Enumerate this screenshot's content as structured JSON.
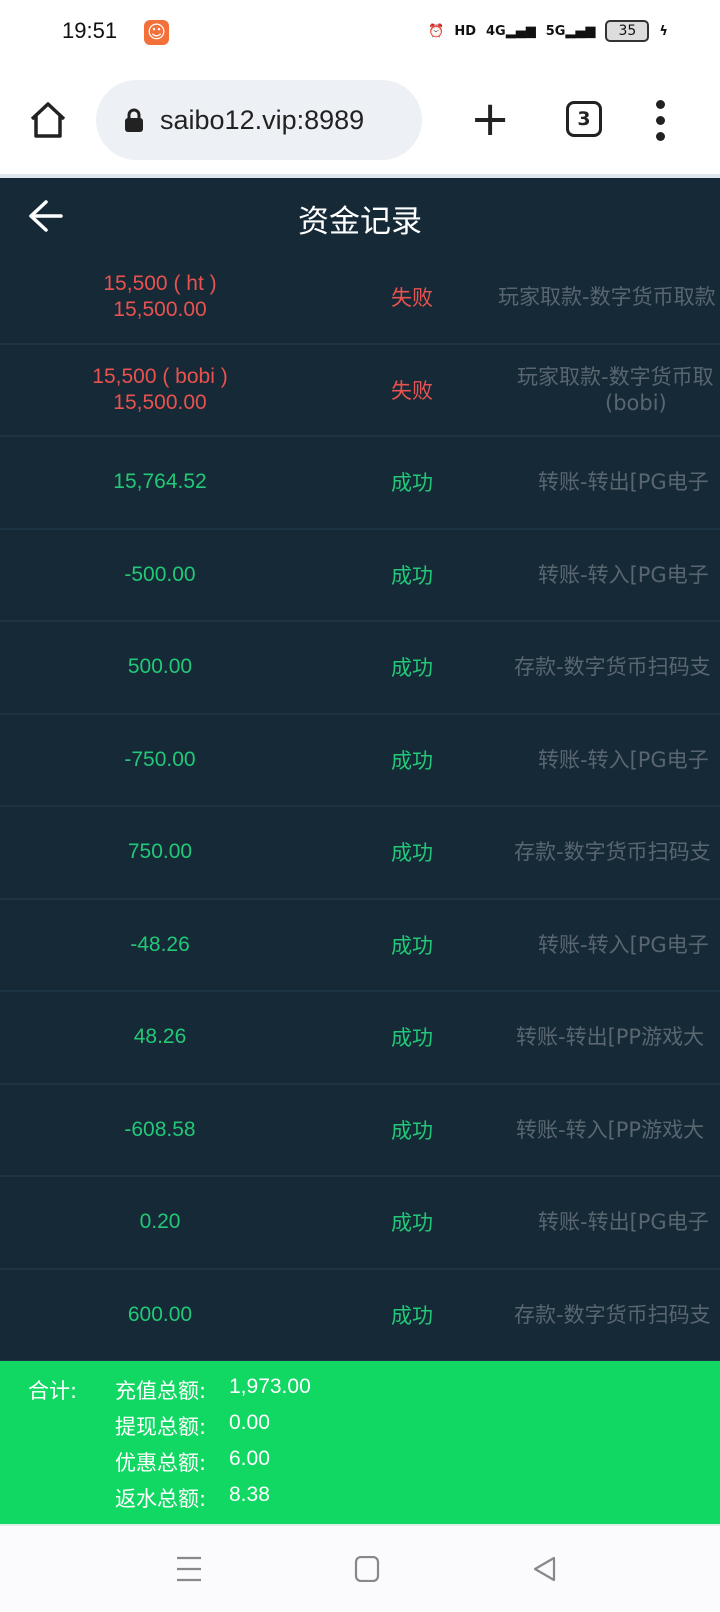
{
  "status_bar": {
    "time": "19:51",
    "battery": "35",
    "network": [
      "HD",
      "4G",
      "5G"
    ]
  },
  "browser": {
    "url": "saibo12.vip:8989",
    "tab_count": "3"
  },
  "page": {
    "title": "资金记录"
  },
  "records": [
    {
      "amount": "15,500 ( ht )",
      "amount2": "15,500.00",
      "status": "失败",
      "status_type": "fail",
      "desc": "玩家取款-数字货币取款",
      "desc2": ""
    },
    {
      "amount": "15,500 ( bobi )",
      "amount2": "15,500.00",
      "status": "失败",
      "status_type": "fail",
      "desc": "玩家取款-数字货币取",
      "desc2": "(bobi)"
    },
    {
      "amount": "15,764.52",
      "amount2": "",
      "status": "成功",
      "status_type": "success",
      "desc": "转账-转出[PG电子",
      "desc2": ""
    },
    {
      "amount": "-500.00",
      "amount2": "",
      "status": "成功",
      "status_type": "success",
      "desc": "转账-转入[PG电子",
      "desc2": ""
    },
    {
      "amount": "500.00",
      "amount2": "",
      "status": "成功",
      "status_type": "success",
      "desc": "存款-数字货币扫码支",
      "desc2": ""
    },
    {
      "amount": "-750.00",
      "amount2": "",
      "status": "成功",
      "status_type": "success",
      "desc": "转账-转入[PG电子",
      "desc2": ""
    },
    {
      "amount": "750.00",
      "amount2": "",
      "status": "成功",
      "status_type": "success",
      "desc": "存款-数字货币扫码支",
      "desc2": ""
    },
    {
      "amount": "-48.26",
      "amount2": "",
      "status": "成功",
      "status_type": "success",
      "desc": "转账-转入[PG电子",
      "desc2": ""
    },
    {
      "amount": "48.26",
      "amount2": "",
      "status": "成功",
      "status_type": "success",
      "desc": "转账-转出[PP游戏大",
      "desc2": ""
    },
    {
      "amount": "-608.58",
      "amount2": "",
      "status": "成功",
      "status_type": "success",
      "desc": "转账-转入[PP游戏大",
      "desc2": ""
    },
    {
      "amount": "0.20",
      "amount2": "",
      "status": "成功",
      "status_type": "success",
      "desc": "转账-转出[PG电子",
      "desc2": ""
    },
    {
      "amount": "600.00",
      "amount2": "",
      "status": "成功",
      "status_type": "success",
      "desc": "存款-数字货币扫码支",
      "desc2": ""
    }
  ],
  "summary": {
    "label": "合计:",
    "lines": [
      {
        "label": "充值总额:",
        "value": "1,973.00"
      },
      {
        "label": "提现总额:",
        "value": "0.00"
      },
      {
        "label": "优惠总额:",
        "value": "6.00"
      },
      {
        "label": "返水总额:",
        "value": "8.38"
      }
    ]
  },
  "colors": {
    "background": "#152937",
    "fail": "#e8524f",
    "success": "#22c877",
    "summary_bg": "#10d862"
  }
}
